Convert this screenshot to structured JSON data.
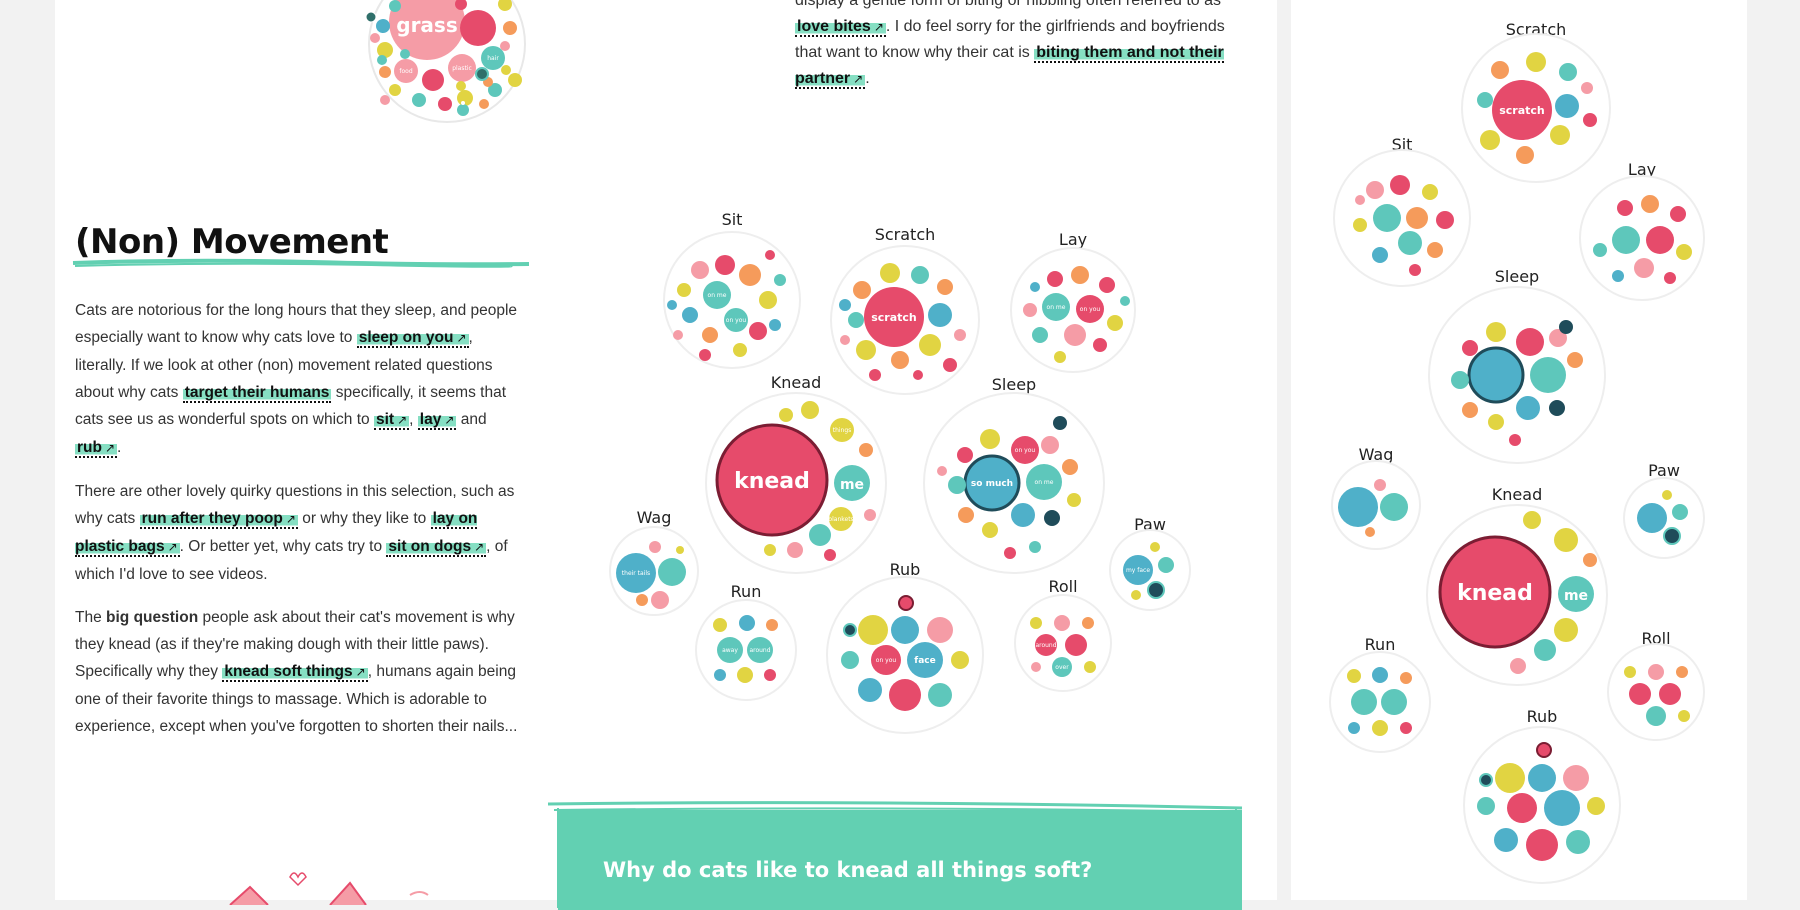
{
  "top_excerpt": {
    "line1_prefix": "display a gentle form of biting or nibbling often referred to as",
    "link_love_bites": "love bites",
    "line2": ". I do feel sorry for the girlfriends and boyfriends that want to know why their cat is",
    "link_biting": "biting them and not their partner",
    "period": "."
  },
  "section": {
    "title": "(Non) Movement",
    "p1": {
      "a": "Cats are notorious for the long hours that they sleep, and people especially want to know why cats love to",
      "link_sleep_on_you": "sleep on you",
      "b": ", literally. If we look at other (non) movement related questions about why cats",
      "link_target": "target their humans",
      "c": "specifically, it seems that cats see us as wonderful spots on which to",
      "link_sit": "sit",
      "comma": ",",
      "link_lay": "lay",
      "and": "and",
      "link_rub": "rub",
      "period": "."
    },
    "p2": {
      "a": "There are other lovely quirky questions in this selection, such as why cats",
      "link_poop": "run after they poop",
      "b": "or why they like to",
      "link_plastic": "lay on plastic bags",
      "c": ". Or better yet, why cats try to",
      "link_dogs": "sit on dogs",
      "d": ", of which I'd love to see videos."
    },
    "p3": {
      "a": "The",
      "bold": "big question",
      "b": "people ask about their cat's movement is why they knead (as if they're making dough with their little paws). Specifically why they",
      "link_knead": "knead soft things",
      "c": ", humans again being one of their favorite things to massage. Which is adorable to experience, except when you've forgotten to shorten their nails..."
    }
  },
  "callout": {
    "title": "Why do cats like to knead all things soft?"
  },
  "top_bubble": {
    "big_word": "grass",
    "small_words": [
      "hair",
      "plastic",
      "food"
    ]
  },
  "main_chart": {
    "labels": {
      "sit": "Sit",
      "scratch": "Scratch",
      "lay": "Lay",
      "knead": "Knead",
      "sleep": "Sleep",
      "wag": "Wag",
      "paw": "Paw",
      "run": "Run",
      "rub": "Rub",
      "roll": "Roll"
    },
    "inner": {
      "scratch": "scratch",
      "knead": "knead",
      "knead_me": "me",
      "sleep_so_much": "so much",
      "on_me": "on me",
      "on_you": "on you",
      "face": "face",
      "away": "away",
      "around": "around",
      "tail": "their tails",
      "my_face": "my face",
      "over": "over",
      "things": "things",
      "blankets": "blankets"
    }
  },
  "side_chart": {
    "labels": {
      "scratch": "Scratch",
      "sit": "Sit",
      "lay": "Lay",
      "sleep": "Sleep",
      "wag": "Wag",
      "paw": "Paw",
      "knead": "Knead",
      "run": "Run",
      "roll": "Roll",
      "rub": "Rub"
    }
  },
  "colors": {
    "teal": "#5ec7bb",
    "pink": "#e64b6b",
    "yellow": "#e1d442",
    "orange": "#f59b5b",
    "blue": "#4fb0c9",
    "lightpink": "#f59ca6",
    "mint": "#62d0b2"
  }
}
